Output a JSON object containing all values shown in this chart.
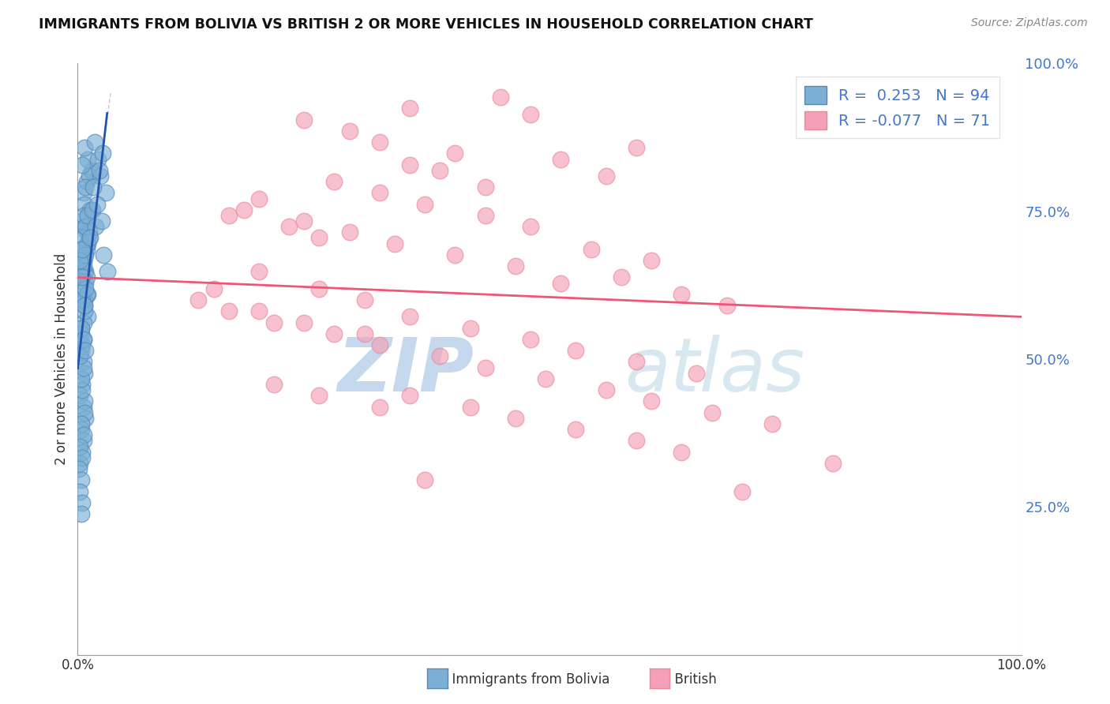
{
  "title": "IMMIGRANTS FROM BOLIVIA VS BRITISH 2 OR MORE VEHICLES IN HOUSEHOLD CORRELATION CHART",
  "source_text": "Source: ZipAtlas.com",
  "ylabel_left": "2 or more Vehicles in Household",
  "blue_color": "#7bafd4",
  "pink_color": "#f4a0b8",
  "blue_edge": "#5588bb",
  "pink_edge": "#ee8899",
  "trendline_blue_color": "#2255aa",
  "trendline_pink_color": "#ee5577",
  "watermark_zip": "ZIP",
  "watermark_atlas": "atlas",
  "watermark_color": "#c5d8ee",
  "background_color": "#ffffff",
  "grid_color": "#cccccc",
  "title_color": "#111111",
  "source_color": "#888888",
  "right_tick_color": "#4477cc",
  "bottom_tick_color": "#333333",
  "figsize": [
    14.06,
    8.92
  ],
  "dpi": 100,
  "blue_x": [
    0.05,
    0.08,
    0.12,
    0.06,
    0.1,
    0.07,
    0.09,
    0.11,
    0.04,
    0.06,
    0.08,
    0.1,
    0.07,
    0.09,
    0.05,
    0.06,
    0.08,
    0.03,
    0.05,
    0.07,
    0.09,
    0.04,
    0.06,
    0.08,
    0.1,
    0.05,
    0.07,
    0.09,
    0.03,
    0.05,
    0.07,
    0.04,
    0.06,
    0.08,
    0.05,
    0.07,
    0.09,
    0.03,
    0.05,
    0.04,
    0.06,
    0.08,
    0.05,
    0.03,
    0.06,
    0.04,
    0.07,
    0.05,
    0.03,
    0.06,
    0.04,
    0.02,
    0.05,
    0.07,
    0.03,
    0.05,
    0.04,
    0.02,
    0.06,
    0.04,
    0.03,
    0.05,
    0.02,
    0.04,
    0.06,
    0.03,
    0.05,
    0.07,
    0.02,
    0.04,
    0.06,
    0.03,
    0.05,
    0.02,
    0.04,
    0.01,
    0.03,
    0.02,
    0.04,
    0.03,
    0.15,
    0.18,
    0.2,
    0.25,
    0.13,
    0.16,
    0.22,
    0.19,
    0.14,
    0.17,
    0.21,
    0.11,
    0.23,
    0.26
  ],
  "blue_y": [
    82,
    84,
    86,
    80,
    85,
    83,
    88,
    79,
    87,
    90,
    72,
    74,
    76,
    73,
    70,
    68,
    75,
    77,
    78,
    66,
    64,
    69,
    71,
    73,
    75,
    74,
    76,
    78,
    72,
    70,
    68,
    65,
    63,
    67,
    69,
    71,
    60,
    58,
    56,
    55,
    62,
    64,
    59,
    57,
    61,
    63,
    65,
    52,
    54,
    50,
    48,
    46,
    44,
    42,
    40,
    38,
    36,
    34,
    45,
    47,
    49,
    51,
    53,
    67,
    62,
    58,
    56,
    54,
    70,
    72,
    43,
    41,
    39,
    37,
    35,
    33,
    31,
    29,
    27,
    25,
    91,
    88,
    85,
    82,
    79,
    76,
    89,
    86,
    83,
    80,
    77,
    74,
    71,
    68
  ],
  "pink_x": [
    2.2,
    2.8,
    1.8,
    1.5,
    2.0,
    2.5,
    3.0,
    2.2,
    3.5,
    2.7,
    1.2,
    1.0,
    1.4,
    1.7,
    2.4,
    3.2,
    3.7,
    1.6,
    2.0,
    2.3,
    2.7,
    3.0,
    3.4,
    3.8,
    1.1,
    1.5,
    1.8,
    2.1,
    2.5,
    2.9,
    3.2,
    3.6,
    4.0,
    4.3,
    1.2,
    1.6,
    1.9,
    2.2,
    2.6,
    3.0,
    3.3,
    3.7,
    4.1,
    1.0,
    1.3,
    1.7,
    2.0,
    2.4,
    2.7,
    3.1,
    3.5,
    3.8,
    4.2,
    4.6,
    0.8,
    1.2,
    1.5,
    1.9,
    2.2,
    2.6,
    2.9,
    3.3,
    3.7,
    4.0,
    4.4,
    5.0,
    0.9,
    1.3,
    1.6,
    2.0,
    2.3
  ],
  "pink_y": [
    97,
    99,
    93,
    95,
    91,
    89,
    96,
    87,
    85,
    83,
    81,
    78,
    76,
    84,
    86,
    88,
    90,
    74,
    82,
    80,
    78,
    76,
    72,
    70,
    79,
    77,
    75,
    73,
    71,
    69,
    66,
    67,
    64,
    62,
    68,
    65,
    63,
    60,
    58,
    56,
    54,
    52,
    50,
    61,
    59,
    57,
    55,
    53,
    51,
    49,
    47,
    45,
    43,
    41,
    63,
    61,
    59,
    57,
    46,
    44,
    42,
    40,
    38,
    36,
    29,
    34,
    65,
    48,
    46,
    44,
    31
  ]
}
